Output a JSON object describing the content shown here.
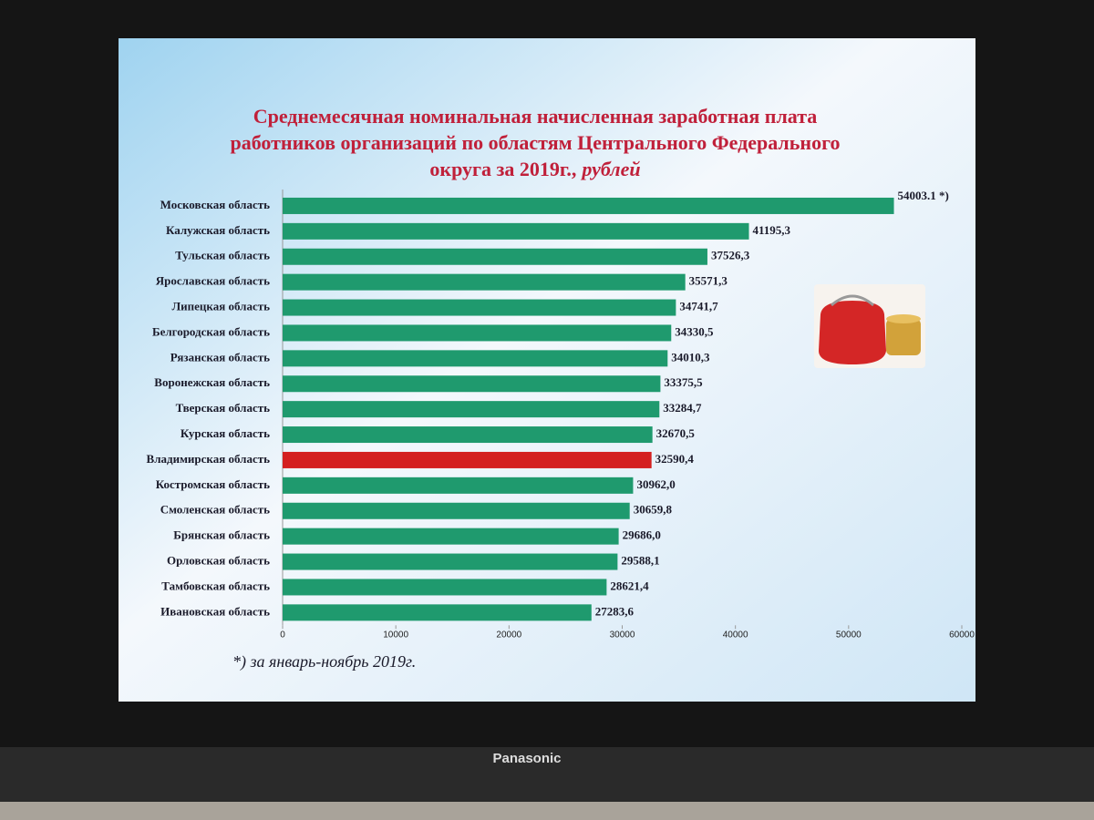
{
  "chart_data": {
    "type": "bar",
    "orientation": "horizontal",
    "title": [
      "Среднемесячная номинальная начисленная  заработная плата",
      "работников  организаций по областям Центрального Федерального",
      "округа за 2019г.,"
    ],
    "title_unit": "рублей",
    "categories": [
      "Московская область",
      "Калужская область",
      "Тульская область",
      "Ярославская область",
      "Липецкая область",
      "Белгородская область",
      "Рязанская область",
      "Воронежская область",
      "Тверская область",
      "Курская область",
      "Владимирская область",
      "Костромская область",
      "Смоленская область",
      "Брянская область",
      "Орловская область",
      "Тамбовская область",
      "Ивановская область"
    ],
    "values": [
      54003.1,
      41195.3,
      37526.3,
      35571.3,
      34741.7,
      34330.5,
      34010.3,
      33375.5,
      33284.7,
      32670.5,
      32590.4,
      30962.0,
      30659.8,
      29686.0,
      29588.1,
      28621.4,
      27283.6
    ],
    "value_labels": [
      "54003.1 *)",
      "41195,3",
      "37526,3",
      "35571,3",
      "34741,7",
      "34330,5",
      "34010,3",
      "33375,5",
      "33284,7",
      "32670,5",
      "32590,4",
      "30962,0",
      "30659,8",
      "29686,0",
      "29588,1",
      "28621,4",
      "27283,6"
    ],
    "colors": [
      "#1f9a6e",
      "#1f9a6e",
      "#1f9a6e",
      "#1f9a6e",
      "#1f9a6e",
      "#1f9a6e",
      "#1f9a6e",
      "#1f9a6e",
      "#1f9a6e",
      "#1f9a6e",
      "#d42020",
      "#1f9a6e",
      "#1f9a6e",
      "#1f9a6e",
      "#1f9a6e",
      "#1f9a6e",
      "#1f9a6e"
    ],
    "xlim": [
      0,
      60000
    ],
    "xticks": [
      0,
      10000,
      20000,
      30000,
      40000,
      50000,
      60000
    ],
    "footnote": "*) за январь-ноябрь 2019г."
  },
  "brand": "Panasonic"
}
